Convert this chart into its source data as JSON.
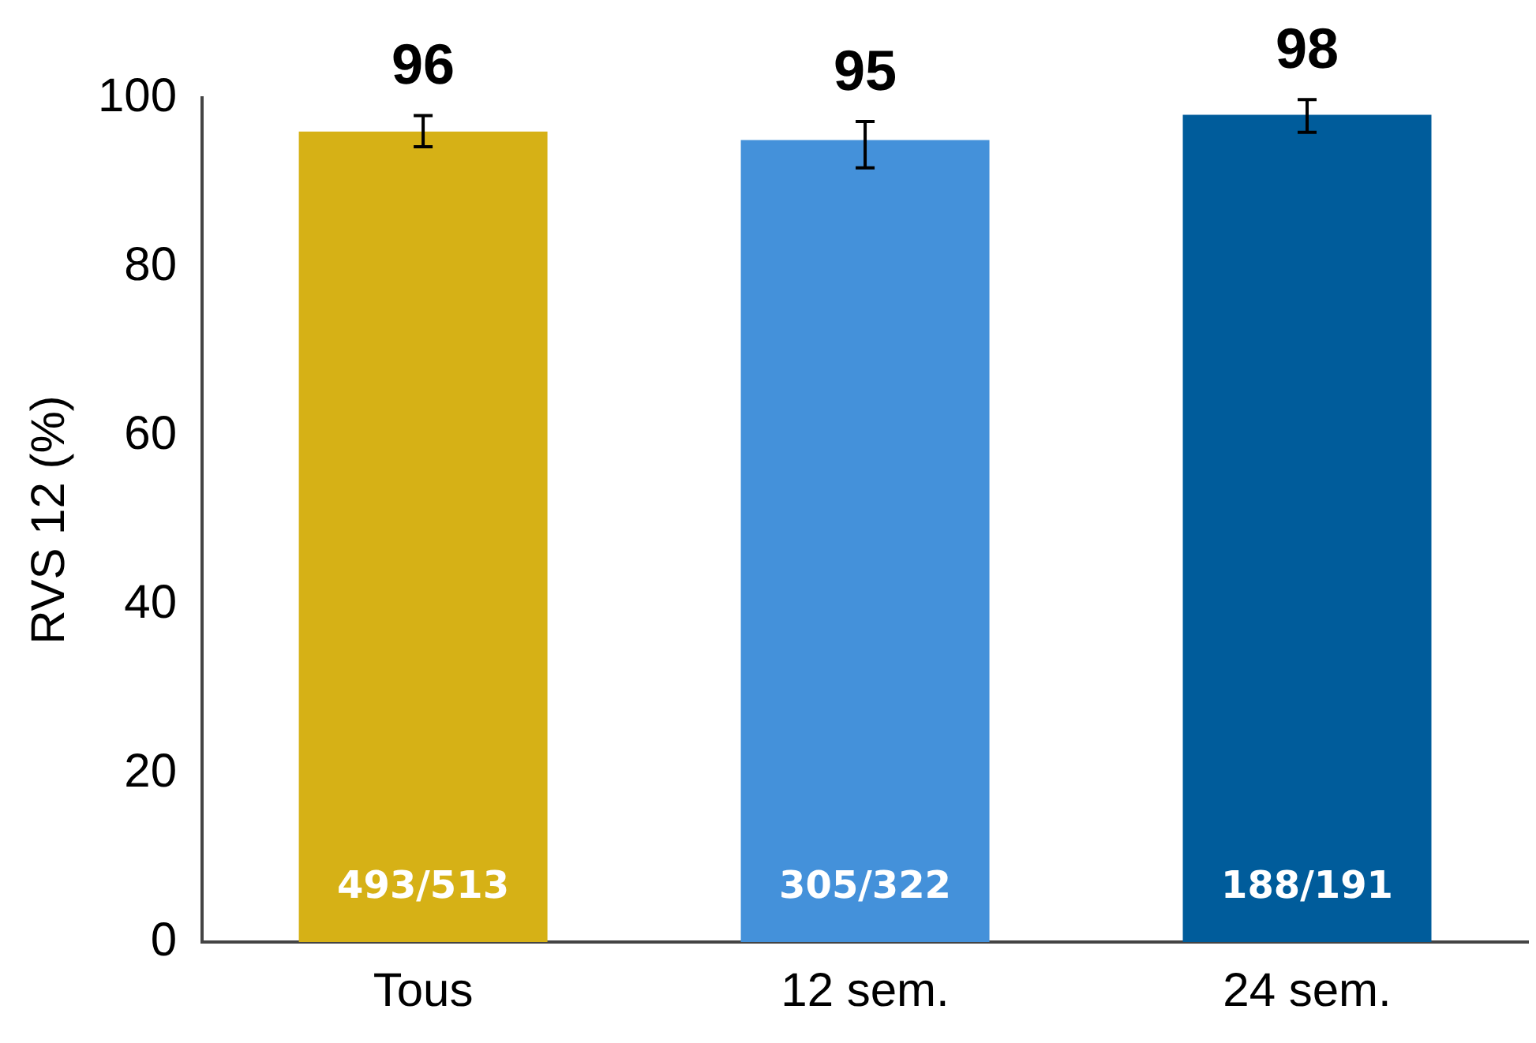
{
  "chart_data": {
    "type": "bar",
    "ylabel": "RVS 12 (%)",
    "categories": [
      "Tous",
      "12 sem.",
      "24 sem."
    ],
    "values": [
      96,
      95,
      98
    ],
    "colors": [
      "#d6b116",
      "#4491da",
      "#005c9b"
    ],
    "errors": [
      [
        94.2,
        97.9
      ],
      [
        91.7,
        97.2
      ],
      [
        95.9,
        99.8
      ]
    ],
    "ylim": [
      0,
      100
    ],
    "yticks": [
      0,
      20,
      40,
      60,
      80,
      100
    ],
    "grid": false,
    "legend": false,
    "data_labels": true,
    "annotations": [
      "493/513",
      "305/322",
      "188/191"
    ]
  }
}
